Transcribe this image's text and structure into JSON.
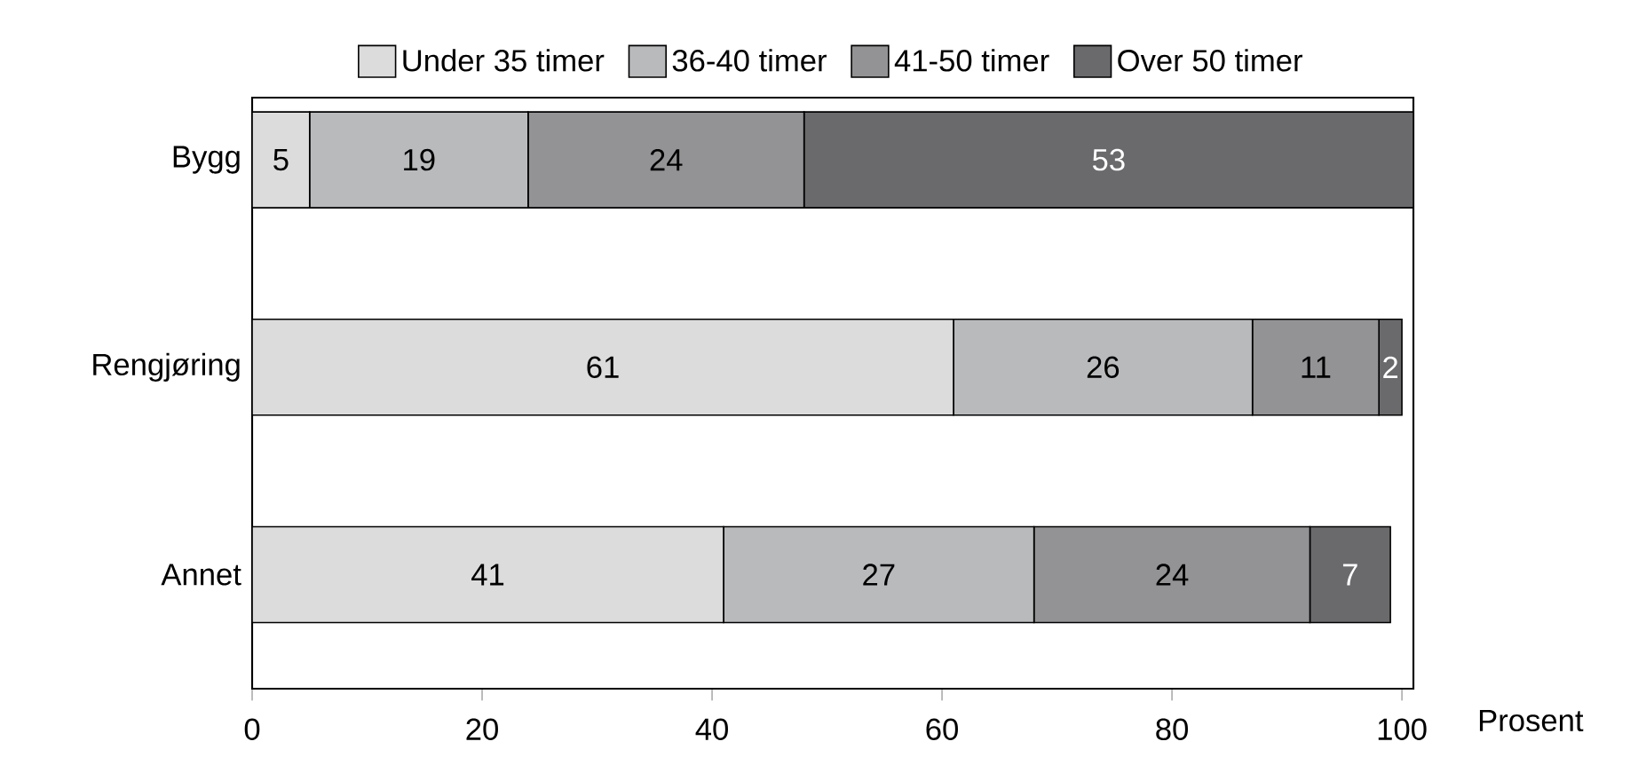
{
  "chart_data": {
    "type": "bar",
    "orientation": "horizontal",
    "stacked": true,
    "xlabel": "Prosent",
    "categories": [
      "Bygg",
      "Rengjøring",
      "Annet"
    ],
    "series": [
      {
        "name": "Under 35 timer",
        "color": "#dcdcdd",
        "values": [
          5,
          61,
          41
        ]
      },
      {
        "name": "36-40 timer",
        "color": "#b9babc",
        "values": [
          19,
          26,
          27
        ]
      },
      {
        "name": "41-50 timer",
        "color": "#939395",
        "values": [
          24,
          11,
          24
        ]
      },
      {
        "name": "Over 50 timer",
        "color": "#6a6a6d",
        "values": [
          53,
          2,
          7
        ]
      }
    ],
    "xlim": [
      0,
      101
    ],
    "xticks": [
      0,
      20,
      40,
      60,
      80,
      100
    ],
    "data_labels": true,
    "legend": "top",
    "grid": false
  }
}
